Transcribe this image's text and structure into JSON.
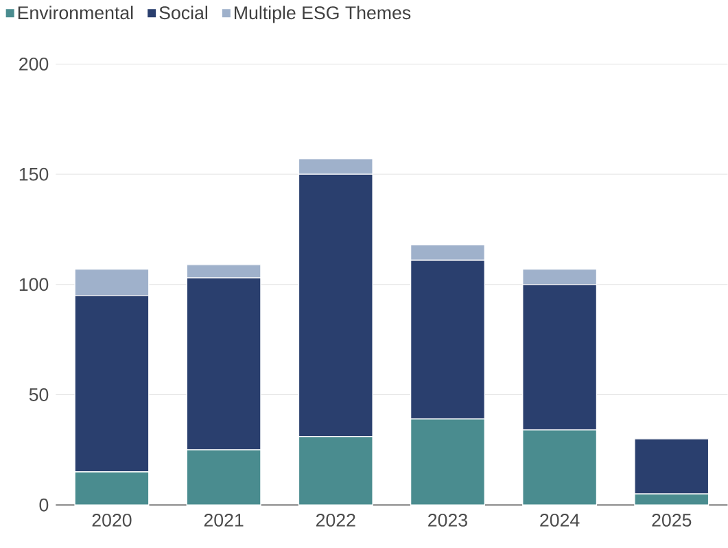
{
  "chart_data": {
    "type": "bar",
    "stacked": true,
    "categories": [
      "2020",
      "2021",
      "2022",
      "2023",
      "2024",
      "2025"
    ],
    "series": [
      {
        "name": "Environmental",
        "color": "#4a8c8f",
        "values": [
          15,
          25,
          31,
          39,
          34,
          5
        ]
      },
      {
        "name": "Social",
        "color": "#2a3f6e",
        "values": [
          80,
          78,
          119,
          72,
          66,
          25
        ]
      },
      {
        "name": "Multiple ESG Themes",
        "color": "#9fb1cb",
        "values": [
          12,
          6,
          7,
          7,
          7,
          0
        ]
      }
    ],
    "ylim": [
      0,
      200
    ],
    "yticks": [
      0,
      50,
      100,
      150,
      200
    ],
    "grid": "y",
    "legend": "top left"
  }
}
